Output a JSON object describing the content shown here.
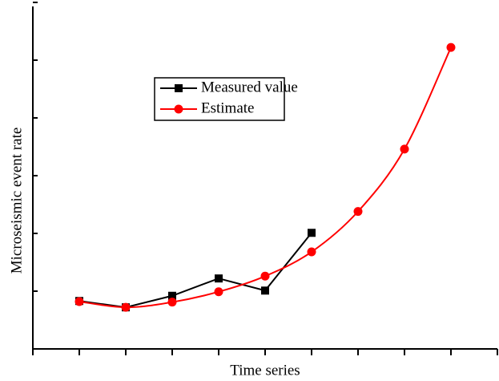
{
  "chart_data": {
    "type": "line",
    "xlabel": "Time series",
    "ylabel": "Microseismic event rate",
    "xlim": [
      0,
      10
    ],
    "xticks": [
      0,
      1,
      2,
      3,
      4,
      5,
      6,
      7,
      8,
      9,
      10
    ],
    "ylim": [
      0,
      6
    ],
    "yticks": [
      0,
      1,
      2,
      3,
      4,
      5,
      6
    ],
    "series": [
      {
        "name": "Measured value",
        "color": "#000000",
        "marker": "square",
        "x": [
          1,
          2,
          3,
          4,
          5,
          6
        ],
        "values": [
          0.83,
          0.72,
          0.92,
          1.22,
          1.01,
          2.01
        ]
      },
      {
        "name": "Estimate",
        "color": "#ff0000",
        "marker": "circle",
        "x": [
          1,
          2,
          3,
          4,
          5,
          6,
          7,
          8,
          9
        ],
        "values": [
          0.82,
          0.72,
          0.81,
          0.99,
          1.26,
          1.68,
          2.38,
          3.46,
          5.22
        ]
      }
    ]
  }
}
